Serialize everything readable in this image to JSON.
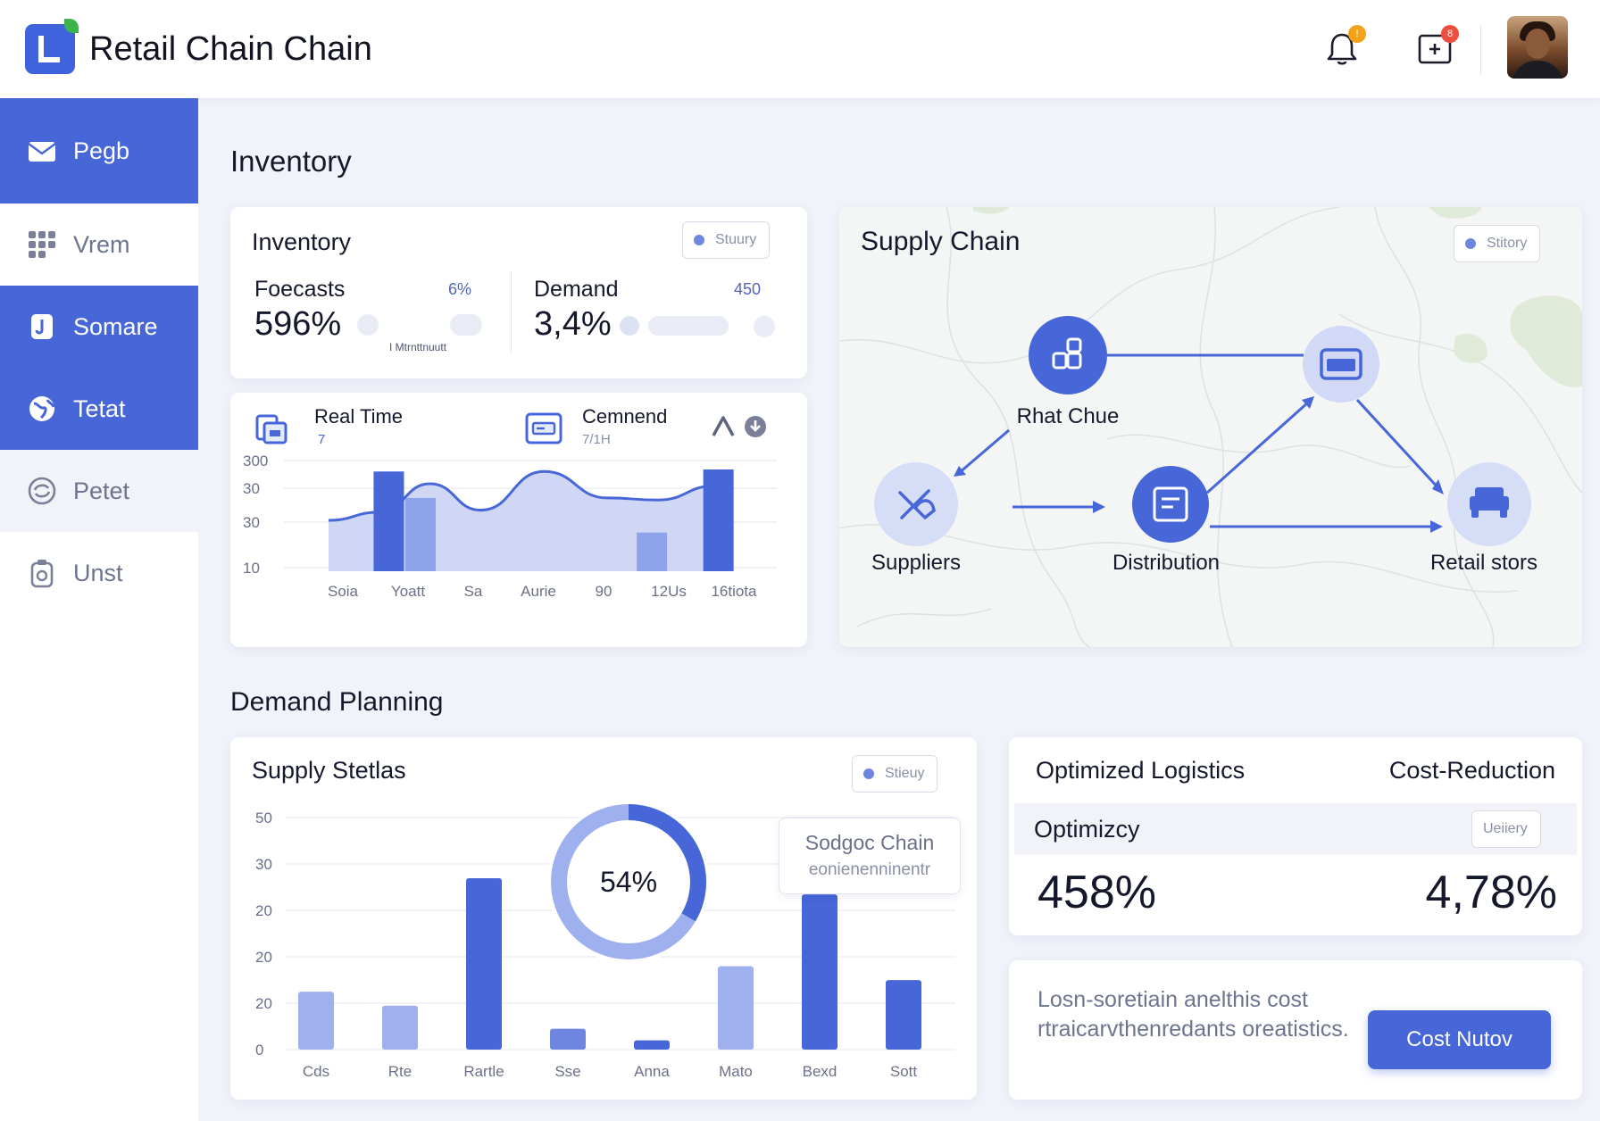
{
  "header": {
    "title": "Retail Chain Chain",
    "notifications_badge": "!",
    "messages_badge": "8"
  },
  "sidebar": {
    "items": [
      {
        "label": "Pegb",
        "icon": "mail-icon",
        "state": "active"
      },
      {
        "label": "Vrem",
        "icon": "grid-icon",
        "state": "normal"
      },
      {
        "label": "Somare",
        "icon": "document-icon",
        "state": "active"
      },
      {
        "label": "Tetat",
        "icon": "globe-icon",
        "state": "active"
      },
      {
        "label": "Petet",
        "icon": "refresh-icon",
        "state": "alt"
      },
      {
        "label": "Unst",
        "icon": "clipboard-icon",
        "state": "normal"
      }
    ]
  },
  "sections": {
    "inventory": "Inventory",
    "demand_planning": "Demand Planning"
  },
  "inventory_card": {
    "title": "Inventory",
    "pill": "Stuury",
    "forecasts_label": "Foecasts",
    "forecasts_value": "596%",
    "forecasts_small": "6%",
    "forecasts_note": "I Mtrnttnuutt",
    "demand_label": "Demand",
    "demand_value": "3,4%",
    "demand_small": "450"
  },
  "realtime_card": {
    "left_label": "Real Time",
    "left_sub": "7",
    "right_label": "Cemnend",
    "right_sub": "7/1H",
    "colors": {
      "bar": "#4766d8",
      "bar_light": "#8fa3ea",
      "area": "#c7d0f3",
      "line": "#4766d8"
    },
    "chart_data": {
      "type": "bar",
      "y_tick_labels": [
        "300",
        "30",
        "30",
        "10"
      ],
      "categories": [
        "Soia",
        "Yoatt",
        "Sa",
        "Aurie",
        "90",
        "12Us",
        "16tiota"
      ],
      "bars": [
        {
          "x": 0.95,
          "value": 0.98,
          "tone": "dark"
        },
        {
          "x": 1.45,
          "value": 0.72,
          "tone": "light"
        },
        {
          "x": 5.1,
          "value": 0.38,
          "tone": "light"
        },
        {
          "x": 6.15,
          "value": 1.0,
          "tone": "dark"
        }
      ],
      "area": [
        [
          0,
          0.5
        ],
        [
          0.8,
          0.58
        ],
        [
          1.6,
          0.86
        ],
        [
          2.4,
          0.6
        ],
        [
          3.4,
          0.98
        ],
        [
          4.4,
          0.72
        ],
        [
          5.2,
          0.7
        ],
        [
          6.1,
          0.84
        ]
      ]
    }
  },
  "supply_chain_card": {
    "title": "Supply Chain",
    "pill": "Stitory",
    "nodes": [
      {
        "label": "Rhat Chue",
        "icon": "warehouse-icon"
      },
      {
        "label": "",
        "icon": "box-icon"
      },
      {
        "label": "Suppliers",
        "icon": "tools-icon"
      },
      {
        "label": "Distribution",
        "icon": "distribution-icon"
      },
      {
        "label": "Retail stors",
        "icon": "store-icon"
      }
    ]
  },
  "supply_status_card": {
    "title": "Supply Stetlas",
    "pill": "Stieuy",
    "donut_label": "54%",
    "donut_value": 0.54,
    "tooltip_line1": "Sodgoc Chain",
    "tooltip_line2": "eonienenninentr",
    "chart_data": {
      "type": "bar",
      "y_tick_labels": [
        "50",
        "30",
        "20",
        "20",
        "20",
        "0"
      ],
      "categories": [
        "Cds",
        "Rte",
        "Rartle",
        "Sse",
        "Anna",
        "Mato",
        "Bexd",
        "Sott"
      ],
      "values": [
        0.25,
        0.19,
        0.74,
        0.09,
        0.04,
        0.36,
        0.67,
        0.3
      ],
      "tones": [
        "light",
        "light",
        "dark",
        "mid",
        "dark",
        "light",
        "dark",
        "dark"
      ]
    }
  },
  "logistics_card": {
    "left_title": "Optimized Logistics",
    "right_title": "Cost-Reduction",
    "sub_title": "Optimizcy",
    "pill": "Ueiiery",
    "left_value": "458%",
    "right_value": "4,78%"
  },
  "cost_card": {
    "note": "Losn-soretiain anelthis cost rtraicarvthenredants oreatistics.",
    "button": "Cost Nutov"
  }
}
